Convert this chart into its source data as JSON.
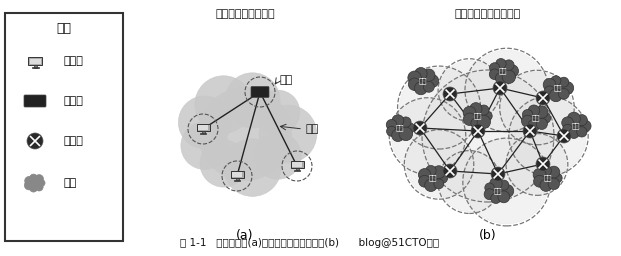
{
  "title": "图 1-1   简单的网络(a)和由网络构成的互连网(b)      blog@51CTO博客",
  "legend_title": "图例",
  "legend_items": [
    "计算机",
    "集线器",
    "路由器",
    "网络"
  ],
  "diagram_a_title": "计算机网络（网络）",
  "diagram_b_title": "互连网（网络的网络）",
  "label_a": "(a)",
  "label_b": "(b)",
  "label_node": "结点",
  "label_link": "链路",
  "net_label": "网络",
  "bg_color": "#ffffff"
}
